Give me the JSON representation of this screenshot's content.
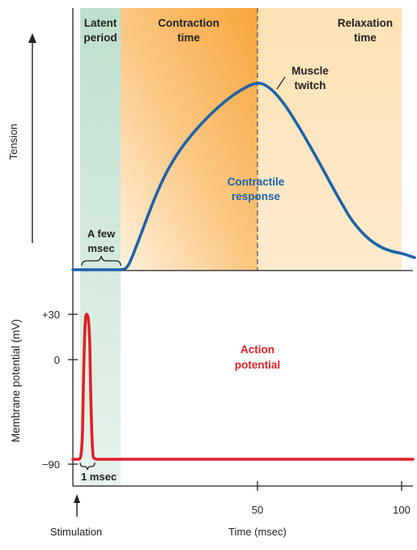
{
  "colors": {
    "latent": "#cfe7d9",
    "contraction_a": "#f7a83c",
    "contraction_b": "#fde6c3",
    "relaxation": "#fde5bb",
    "twitch": "#1f62a8",
    "action": "#e02027",
    "axis": "#222222"
  },
  "phases": {
    "latent_line1": "Latent",
    "latent_line2": "period",
    "contraction_line1": "Contraction",
    "contraction_line2": "time",
    "relaxation_line1": "Relaxation",
    "relaxation_line2": "time"
  },
  "labels": {
    "tension": "Tension",
    "membrane_potential": "Membrane potential (mV)",
    "muscle_twitch_line1": "Muscle",
    "muscle_twitch_line2": "twitch",
    "contractile_line1": "Contractile",
    "contractile_line2": "response",
    "action_line1": "Action",
    "action_line2": "potential",
    "few_msec_line1": "A few",
    "few_msec_line2": "msec",
    "one_msec": "1 msec",
    "stimulation": "Stimulation",
    "time_axis": "Time (msec)"
  },
  "x_ticks": [
    "50",
    "100"
  ],
  "y_ticks": [
    "+30",
    "0",
    "−90"
  ],
  "chart_data": {
    "type": "line",
    "xlabel": "Time (msec)",
    "x_ticks": [
      50,
      100
    ],
    "series": [
      {
        "name": "Muscle twitch",
        "panel": "tension",
        "x": [
          0,
          5,
          10,
          14,
          18,
          25,
          35,
          45,
          50,
          55,
          65,
          75,
          85,
          95,
          100,
          104
        ],
        "y": [
          0,
          0,
          0,
          0,
          0.13,
          0.42,
          0.64,
          0.88,
          0.96,
          0.91,
          0.66,
          0.38,
          0.18,
          0.06,
          0.025,
          0.01
        ]
      },
      {
        "name": "Action potential",
        "panel": "membrane",
        "ylabel": "Membrane potential (mV)",
        "y_ticks": [
          30,
          0,
          -90
        ],
        "x": [
          0,
          1.5,
          2.4,
          3.0,
          3.5,
          4.2,
          5.0,
          6.0,
          104
        ],
        "y": [
          -90,
          -90,
          -30,
          24,
          30,
          15,
          -70,
          -90,
          -90
        ]
      }
    ]
  }
}
